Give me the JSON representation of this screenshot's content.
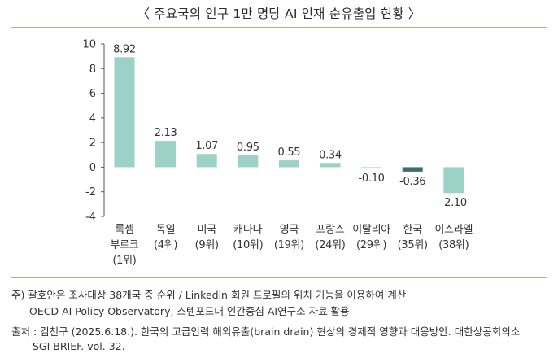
{
  "title": "〈 주요국의 인구 1만 명당 AI 인재 순유출입 현황 〉",
  "colors": {
    "positive": "#9bd1c6",
    "negative": "#3d6d73",
    "frame": "#d9a27a",
    "axis": "#555555"
  },
  "chart_data": {
    "type": "bar",
    "title": "주요국의 인구 1만 명당 AI 인재 순유출입 현황",
    "xlabel": "",
    "ylabel": "",
    "ylim": [
      -4,
      10
    ],
    "yticks": [
      10,
      8,
      6,
      4,
      2,
      0,
      -2,
      -4
    ],
    "grid": false,
    "legend": "none",
    "categories": [
      [
        "룩셈",
        "부르크",
        "(1위)"
      ],
      [
        "독일",
        "(4위)"
      ],
      [
        "미국",
        "(9위)"
      ],
      [
        "캐나다",
        "(10위)"
      ],
      [
        "영국",
        "(19위)"
      ],
      [
        "프랑스",
        "(24위)"
      ],
      [
        "이탈리아",
        "(29위)"
      ],
      [
        "한국",
        "(35위)"
      ],
      [
        "이스라엘",
        "(38위)"
      ]
    ],
    "values": [
      8.92,
      2.13,
      1.07,
      0.95,
      0.55,
      0.34,
      -0.1,
      -0.36,
      -2.1
    ],
    "value_labels": [
      "8.92",
      "2.13",
      "1.07",
      "0.95",
      "0.55",
      "0.34",
      "-0.10",
      "-0.36",
      "-2.10"
    ],
    "highlight_index": 7
  },
  "notes": {
    "note1_line1": "주) 괄호안은 조사대상 38개국 중 순위 / Linkedin 회원 프로필의 위치 기능을 이용하여 계산",
    "note1_line2": "OECD AI Policy Observatory, 스텐포드대 인간중심 AI연구소 자료 활용",
    "source_line1": "출처 : 김천구 (2025.6.18.). 한국의 고급인력 해외유출(brain drain) 현상의 경제적 영향과 대응방안. 대한상공회의소",
    "source_line2": "SGI BRIEF. vol. 32."
  }
}
